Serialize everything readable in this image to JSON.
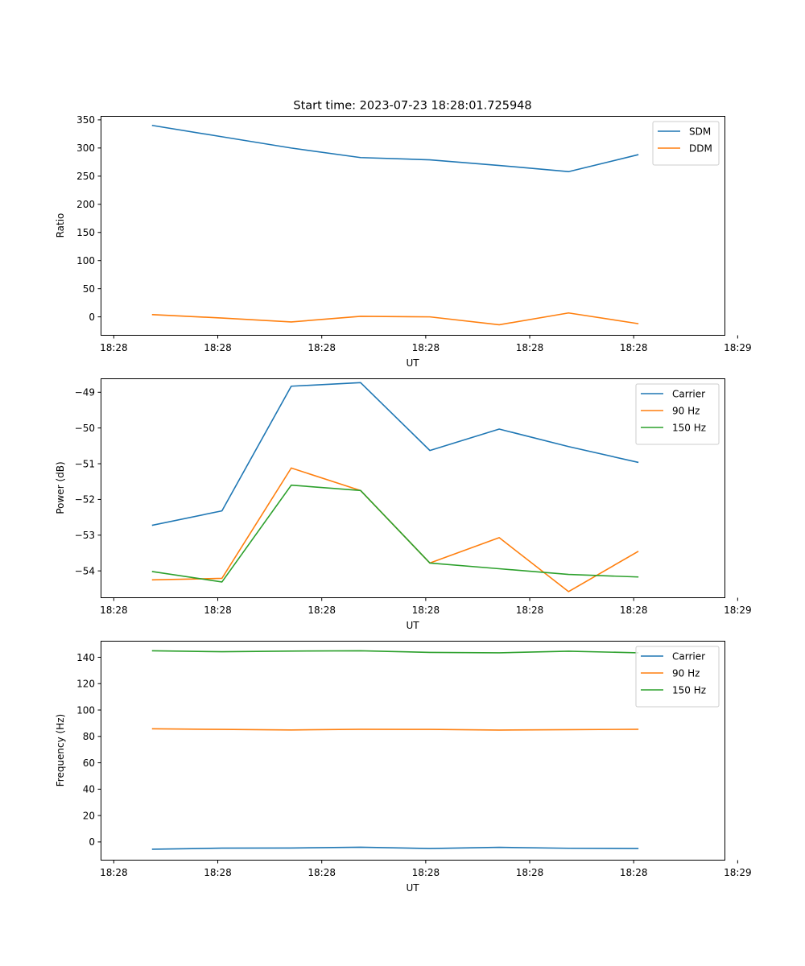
{
  "figure_title": "Start time: 2023-07-23 18:28:01.725948",
  "colors": {
    "blue": "#1f77b4",
    "orange": "#ff7f0e",
    "green": "#2ca02c"
  },
  "chart_data": [
    {
      "type": "line",
      "title": "Start time: 2023-07-23 18:28:01.725948",
      "xlabel": "UT",
      "ylabel": "Ratio",
      "x_seconds": [
        1,
        2,
        3,
        4,
        5,
        6,
        7,
        8
      ],
      "xlim": [
        0.25,
        9.25
      ],
      "x_ticks": [
        0.44,
        1.94,
        3.44,
        4.94,
        6.44,
        7.94,
        9.44
      ],
      "x_tick_labels": [
        "18:28",
        "18:28",
        "18:28",
        "18:28",
        "18:28",
        "18:28",
        "18:29"
      ],
      "ylim": [
        -32,
        357
      ],
      "y_ticks": [
        0,
        50,
        100,
        150,
        200,
        250,
        300,
        350
      ],
      "y_tick_labels": [
        "0",
        "50",
        "100",
        "150",
        "200",
        "250",
        "300",
        "350"
      ],
      "legend_position": "top-right",
      "series": [
        {
          "name": "SDM",
          "color": "#1f77b4",
          "values": [
            340,
            320,
            300,
            283,
            279,
            269,
            258,
            288
          ]
        },
        {
          "name": "DDM",
          "color": "#ff7f0e",
          "values": [
            4,
            -2,
            -9,
            1,
            0,
            -14,
            7,
            -12
          ]
        }
      ]
    },
    {
      "type": "line",
      "xlabel": "UT",
      "ylabel": "Power (dB)",
      "x_seconds": [
        1,
        2,
        3,
        4,
        5,
        6,
        7,
        8
      ],
      "xlim": [
        0.25,
        9.25
      ],
      "x_ticks": [
        0.44,
        1.94,
        3.44,
        4.94,
        6.44,
        7.94,
        9.44
      ],
      "x_tick_labels": [
        "18:28",
        "18:28",
        "18:28",
        "18:28",
        "18:28",
        "18:28",
        "18:29"
      ],
      "ylim": [
        -54.74,
        -48.61
      ],
      "y_ticks": [
        -54,
        -53,
        -52,
        -51,
        -50,
        -49
      ],
      "y_tick_labels": [
        "−54",
        "−53",
        "−52",
        "−51",
        "−50",
        "−49"
      ],
      "legend_position": "top-right",
      "series": [
        {
          "name": "Carrier",
          "color": "#1f77b4",
          "values": [
            -52.72,
            -52.32,
            -48.83,
            -48.73,
            -50.63,
            -50.03,
            -50.52,
            -50.96
          ]
        },
        {
          "name": "90 Hz",
          "color": "#ff7f0e",
          "values": [
            -54.25,
            -54.21,
            -51.12,
            -51.75,
            -53.78,
            -53.07,
            -54.58,
            -53.46
          ]
        },
        {
          "name": "150 Hz",
          "color": "#2ca02c",
          "values": [
            -54.02,
            -54.31,
            -51.6,
            -51.75,
            -53.78,
            -53.94,
            -54.1,
            -54.17
          ]
        }
      ]
    },
    {
      "type": "line",
      "xlabel": "UT",
      "ylabel": "Frequency (Hz)",
      "x_seconds": [
        1,
        2,
        3,
        4,
        5,
        6,
        7,
        8
      ],
      "xlim": [
        0.25,
        9.25
      ],
      "x_ticks": [
        0.44,
        1.94,
        3.44,
        4.94,
        6.44,
        7.94,
        9.44
      ],
      "x_tick_labels": [
        "18:28",
        "18:28",
        "18:28",
        "18:28",
        "18:28",
        "18:28",
        "18:29"
      ],
      "ylim": [
        -13.5,
        152.5
      ],
      "y_ticks": [
        0,
        20,
        40,
        60,
        80,
        100,
        120,
        140
      ],
      "y_tick_labels": [
        "0",
        "20",
        "40",
        "60",
        "80",
        "100",
        "120",
        "140"
      ],
      "legend_position": "top-right",
      "series": [
        {
          "name": "Carrier",
          "color": "#1f77b4",
          "values": [
            -5.5,
            -4.7,
            -4.6,
            -4.0,
            -5.0,
            -4.1,
            -4.8,
            -5.0
          ]
        },
        {
          "name": "90 Hz",
          "color": "#ff7f0e",
          "values": [
            85.8,
            85.3,
            84.9,
            85.4,
            85.3,
            84.8,
            85.1,
            85.4
          ]
        },
        {
          "name": "150 Hz",
          "color": "#2ca02c",
          "values": [
            144.9,
            144.2,
            144.7,
            144.9,
            143.7,
            143.4,
            144.6,
            143.4
          ]
        }
      ]
    }
  ]
}
